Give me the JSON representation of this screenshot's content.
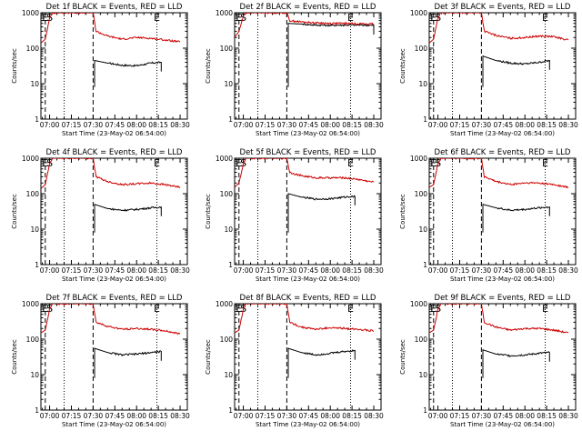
{
  "figure": {
    "colors": {
      "events": "#000000",
      "lld": "#cc0000",
      "axes": "#000000",
      "background": "#ffffff"
    }
  },
  "chart_data": [
    {
      "type": "line",
      "title": "Det 1f BLACK = Events, RED = LLD",
      "xlabel": "Start Time (23-May-02 06:54:00)",
      "ylabel": "Counts/sec",
      "yscale": "log",
      "ylim": [
        1,
        1000
      ],
      "xlim": [
        "06:54",
        "08:35"
      ],
      "x_ticks": [
        "07:00",
        "07:15",
        "07:30",
        "07:45",
        "08:00",
        "08:15",
        "08:30"
      ],
      "y_ticks": [
        "1",
        "10",
        "100",
        "1000"
      ],
      "markers": [
        {
          "label": "E",
          "time": "06:57"
        },
        {
          "label": "S",
          "time": "07:00"
        },
        {
          "label": "E",
          "time": "08:14"
        }
      ],
      "dashed_lines": [
        "06:57",
        "07:30"
      ],
      "dotted_lines": [
        "07:10",
        "08:14"
      ],
      "series": [
        {
          "name": "Events",
          "color": "#000000",
          "x": [
            "07:31",
            "07:40",
            "07:50",
            "08:00",
            "08:10",
            "08:17"
          ],
          "values": [
            45,
            38,
            33,
            32,
            38,
            40
          ]
        },
        {
          "name": "LLD",
          "color": "#cc0000",
          "x": [
            "06:54",
            "06:57",
            "07:00",
            "07:02",
            "07:30",
            "07:32",
            "07:40",
            "07:50",
            "08:00",
            "08:10",
            "08:20",
            "08:30"
          ],
          "values": [
            140,
            180,
            700,
            1000,
            1000,
            300,
            220,
            180,
            200,
            190,
            170,
            150
          ]
        }
      ],
      "grid": false,
      "legend": "title"
    },
    {
      "type": "line",
      "title": "Det 2f BLACK = Events, RED = LLD",
      "xlabel": "Start Time (23-May-02 06:54:00)",
      "ylabel": "Counts/sec",
      "yscale": "log",
      "ylim": [
        1,
        1000
      ],
      "xlim": [
        "06:54",
        "08:35"
      ],
      "x_ticks": [
        "07:00",
        "07:15",
        "07:30",
        "07:45",
        "08:00",
        "08:15",
        "08:30"
      ],
      "y_ticks": [
        "1",
        "10",
        "100",
        "1000"
      ],
      "markers": [
        {
          "label": "E",
          "time": "06:57"
        },
        {
          "label": "S",
          "time": "07:00"
        },
        {
          "label": "E",
          "time": "08:14"
        }
      ],
      "dashed_lines": [
        "06:57",
        "07:30"
      ],
      "dotted_lines": [
        "07:10",
        "08:14"
      ],
      "series": [
        {
          "name": "Events",
          "color": "#000000",
          "x": [
            "07:31",
            "07:40",
            "07:50",
            "08:00",
            "08:10",
            "08:20",
            "08:30"
          ],
          "values": [
            500,
            480,
            450,
            440,
            450,
            450,
            440
          ]
        },
        {
          "name": "LLD",
          "color": "#cc0000",
          "x": [
            "06:54",
            "06:57",
            "07:00",
            "07:02",
            "07:30",
            "07:32",
            "07:40",
            "07:50",
            "08:00",
            "08:10",
            "08:20",
            "08:30"
          ],
          "values": [
            200,
            300,
            800,
            1000,
            1000,
            600,
            550,
            520,
            500,
            500,
            490,
            480
          ]
        }
      ],
      "grid": false,
      "legend": "title"
    },
    {
      "type": "line",
      "title": "Det 3f BLACK = Events, RED = LLD",
      "xlabel": "Start Time (23-May-02 06:54:00)",
      "ylabel": "Counts/sec",
      "yscale": "log",
      "ylim": [
        1,
        1000
      ],
      "xlim": [
        "06:54",
        "08:35"
      ],
      "x_ticks": [
        "07:00",
        "07:15",
        "07:30",
        "07:45",
        "08:00",
        "08:15",
        "08:30"
      ],
      "y_ticks": [
        "1",
        "10",
        "100",
        "1000"
      ],
      "markers": [
        {
          "label": "E",
          "time": "06:57"
        },
        {
          "label": "S",
          "time": "07:00"
        },
        {
          "label": "E",
          "time": "08:14"
        }
      ],
      "dashed_lines": [
        "06:57",
        "07:30"
      ],
      "dotted_lines": [
        "07:10",
        "08:14"
      ],
      "series": [
        {
          "name": "Events",
          "color": "#000000",
          "x": [
            "07:31",
            "07:40",
            "07:50",
            "08:00",
            "08:10",
            "08:17"
          ],
          "values": [
            60,
            45,
            38,
            36,
            40,
            45
          ]
        },
        {
          "name": "LLD",
          "color": "#cc0000",
          "x": [
            "06:54",
            "06:57",
            "07:00",
            "07:02",
            "07:30",
            "07:32",
            "07:40",
            "07:50",
            "08:00",
            "08:10",
            "08:20",
            "08:30"
          ],
          "values": [
            140,
            180,
            700,
            1000,
            1000,
            300,
            230,
            190,
            200,
            220,
            210,
            170
          ]
        }
      ],
      "grid": false,
      "legend": "title"
    },
    {
      "type": "line",
      "title": "Det 4f BLACK = Events, RED = LLD",
      "xlabel": "Start Time (23-May-02 06:54:00)",
      "ylabel": "Counts/sec",
      "yscale": "log",
      "ylim": [
        1,
        1000
      ],
      "xlim": [
        "06:54",
        "08:35"
      ],
      "x_ticks": [
        "07:00",
        "07:15",
        "07:30",
        "07:45",
        "08:00",
        "08:15",
        "08:30"
      ],
      "y_ticks": [
        "1",
        "10",
        "100",
        "1000"
      ],
      "markers": [
        {
          "label": "E",
          "time": "06:57"
        },
        {
          "label": "S",
          "time": "07:00"
        },
        {
          "label": "E",
          "time": "08:14"
        }
      ],
      "dashed_lines": [
        "06:57",
        "07:30"
      ],
      "dotted_lines": [
        "07:10",
        "08:14"
      ],
      "series": [
        {
          "name": "Events",
          "color": "#000000",
          "x": [
            "07:31",
            "07:40",
            "07:50",
            "08:00",
            "08:10",
            "08:17"
          ],
          "values": [
            50,
            38,
            34,
            36,
            40,
            42
          ]
        },
        {
          "name": "LLD",
          "color": "#cc0000",
          "x": [
            "06:54",
            "06:57",
            "07:00",
            "07:02",
            "07:30",
            "07:32",
            "07:40",
            "07:50",
            "08:00",
            "08:10",
            "08:20",
            "08:30"
          ],
          "values": [
            140,
            180,
            700,
            1000,
            1000,
            300,
            220,
            180,
            190,
            200,
            180,
            150
          ]
        }
      ],
      "grid": false,
      "legend": "title"
    },
    {
      "type": "line",
      "title": "Det 5f BLACK = Events, RED = LLD",
      "xlabel": "Start Time (23-May-02 06:54:00)",
      "ylabel": "Counts/sec",
      "yscale": "log",
      "ylim": [
        1,
        1000
      ],
      "xlim": [
        "06:54",
        "08:35"
      ],
      "x_ticks": [
        "07:00",
        "07:15",
        "07:30",
        "07:45",
        "08:00",
        "08:15",
        "08:30"
      ],
      "y_ticks": [
        "1",
        "10",
        "100",
        "1000"
      ],
      "markers": [
        {
          "label": "E",
          "time": "06:57"
        },
        {
          "label": "S",
          "time": "07:00"
        },
        {
          "label": "E",
          "time": "08:14"
        }
      ],
      "dashed_lines": [
        "06:57",
        "07:30"
      ],
      "dotted_lines": [
        "07:10",
        "08:14"
      ],
      "series": [
        {
          "name": "Events",
          "color": "#000000",
          "x": [
            "07:31",
            "07:40",
            "07:50",
            "08:00",
            "08:10",
            "08:17"
          ],
          "values": [
            100,
            80,
            70,
            72,
            80,
            85
          ]
        },
        {
          "name": "LLD",
          "color": "#cc0000",
          "x": [
            "06:54",
            "06:57",
            "07:00",
            "07:02",
            "07:30",
            "07:32",
            "07:40",
            "07:50",
            "08:00",
            "08:10",
            "08:20",
            "08:30"
          ],
          "values": [
            150,
            200,
            700,
            1000,
            1000,
            400,
            320,
            280,
            280,
            280,
            250,
            210
          ]
        }
      ],
      "grid": false,
      "legend": "title"
    },
    {
      "type": "line",
      "title": "Det 6f BLACK = Events, RED = LLD",
      "xlabel": "Start Time (23-May-02 06:54:00)",
      "ylabel": "Counts/sec",
      "yscale": "log",
      "ylim": [
        1,
        1000
      ],
      "xlim": [
        "06:54",
        "08:35"
      ],
      "x_ticks": [
        "07:00",
        "07:15",
        "07:30",
        "07:45",
        "08:00",
        "08:15",
        "08:30"
      ],
      "y_ticks": [
        "1",
        "10",
        "100",
        "1000"
      ],
      "markers": [
        {
          "label": "E",
          "time": "06:57"
        },
        {
          "label": "S",
          "time": "07:00"
        },
        {
          "label": "E",
          "time": "08:14"
        }
      ],
      "dashed_lines": [
        "06:57",
        "07:30"
      ],
      "dotted_lines": [
        "07:10",
        "08:14"
      ],
      "series": [
        {
          "name": "Events",
          "color": "#000000",
          "x": [
            "07:31",
            "07:40",
            "07:50",
            "08:00",
            "08:10",
            "08:17"
          ],
          "values": [
            50,
            40,
            34,
            36,
            40,
            42
          ]
        },
        {
          "name": "LLD",
          "color": "#cc0000",
          "x": [
            "06:54",
            "06:57",
            "07:00",
            "07:02",
            "07:30",
            "07:32",
            "07:40",
            "07:50",
            "08:00",
            "08:10",
            "08:20",
            "08:30"
          ],
          "values": [
            150,
            180,
            700,
            1000,
            1000,
            300,
            220,
            180,
            200,
            200,
            180,
            150
          ]
        }
      ],
      "grid": false,
      "legend": "title"
    },
    {
      "type": "line",
      "title": "Det 7f BLACK = Events, RED = LLD",
      "xlabel": "Start Time (23-May-02 06:54:00)",
      "ylabel": "Counts/sec",
      "yscale": "log",
      "ylim": [
        1,
        1000
      ],
      "xlim": [
        "06:54",
        "08:35"
      ],
      "x_ticks": [
        "07:00",
        "07:15",
        "07:30",
        "07:45",
        "08:00",
        "08:15",
        "08:30"
      ],
      "y_ticks": [
        "1",
        "10",
        "100",
        "1000"
      ],
      "markers": [
        {
          "label": "E",
          "time": "06:57"
        },
        {
          "label": "S",
          "time": "07:00"
        },
        {
          "label": "E",
          "time": "08:14"
        }
      ],
      "dashed_lines": [
        "06:57",
        "07:30"
      ],
      "dotted_lines": [
        "07:10",
        "08:14"
      ],
      "series": [
        {
          "name": "Events",
          "color": "#000000",
          "x": [
            "07:31",
            "07:40",
            "07:50",
            "08:00",
            "08:10",
            "08:17"
          ],
          "values": [
            55,
            42,
            36,
            38,
            42,
            45
          ]
        },
        {
          "name": "LLD",
          "color": "#cc0000",
          "x": [
            "06:54",
            "06:57",
            "07:00",
            "07:02",
            "07:30",
            "07:32",
            "07:40",
            "07:50",
            "08:00",
            "08:10",
            "08:20",
            "08:30"
          ],
          "values": [
            150,
            180,
            700,
            1000,
            1000,
            300,
            230,
            190,
            200,
            190,
            170,
            140
          ]
        }
      ],
      "grid": false,
      "legend": "title"
    },
    {
      "type": "line",
      "title": "Det 8f BLACK = Events, RED = LLD",
      "xlabel": "Start Time (23-May-02 06:54:00)",
      "ylabel": "Counts/sec",
      "yscale": "log",
      "ylim": [
        1,
        1000
      ],
      "xlim": [
        "06:54",
        "08:35"
      ],
      "x_ticks": [
        "07:00",
        "07:15",
        "07:30",
        "07:45",
        "08:00",
        "08:15",
        "08:30"
      ],
      "y_ticks": [
        "1",
        "10",
        "100",
        "1000"
      ],
      "markers": [
        {
          "label": "E",
          "time": "06:57"
        },
        {
          "label": "S",
          "time": "07:00"
        },
        {
          "label": "E",
          "time": "08:14"
        }
      ],
      "dashed_lines": [
        "06:57",
        "07:30"
      ],
      "dotted_lines": [
        "07:10",
        "08:14"
      ],
      "series": [
        {
          "name": "Events",
          "color": "#000000",
          "x": [
            "07:31",
            "07:40",
            "07:50",
            "08:00",
            "08:10",
            "08:17"
          ],
          "values": [
            55,
            42,
            36,
            40,
            45,
            48
          ]
        },
        {
          "name": "LLD",
          "color": "#cc0000",
          "x": [
            "06:54",
            "06:57",
            "07:00",
            "07:02",
            "07:30",
            "07:32",
            "07:40",
            "07:50",
            "08:00",
            "08:10",
            "08:20",
            "08:30"
          ],
          "values": [
            150,
            180,
            700,
            1000,
            1000,
            300,
            220,
            190,
            210,
            200,
            190,
            170
          ]
        }
      ],
      "grid": false,
      "legend": "title"
    },
    {
      "type": "line",
      "title": "Det 9f BLACK = Events, RED = LLD",
      "xlabel": "Start Time (23-May-02 06:54:00)",
      "ylabel": "Counts/sec",
      "yscale": "log",
      "ylim": [
        1,
        1000
      ],
      "xlim": [
        "06:54",
        "08:35"
      ],
      "x_ticks": [
        "07:00",
        "07:15",
        "07:30",
        "07:45",
        "08:00",
        "08:15",
        "08:30"
      ],
      "y_ticks": [
        "1",
        "10",
        "100",
        "1000"
      ],
      "markers": [
        {
          "label": "E",
          "time": "06:57"
        },
        {
          "label": "S",
          "time": "07:00"
        },
        {
          "label": "E",
          "time": "08:14"
        }
      ],
      "dashed_lines": [
        "06:57",
        "07:30"
      ],
      "dotted_lines": [
        "07:10",
        "08:14"
      ],
      "series": [
        {
          "name": "Events",
          "color": "#000000",
          "x": [
            "07:31",
            "07:40",
            "07:50",
            "08:00",
            "08:10",
            "08:17"
          ],
          "values": [
            50,
            38,
            34,
            36,
            40,
            42
          ]
        },
        {
          "name": "LLD",
          "color": "#cc0000",
          "x": [
            "06:54",
            "06:57",
            "07:00",
            "07:02",
            "07:30",
            "07:32",
            "07:40",
            "07:50",
            "08:00",
            "08:10",
            "08:20",
            "08:30"
          ],
          "values": [
            150,
            180,
            700,
            1000,
            1000,
            300,
            220,
            180,
            200,
            200,
            180,
            150
          ]
        }
      ],
      "grid": false,
      "legend": "title"
    }
  ]
}
